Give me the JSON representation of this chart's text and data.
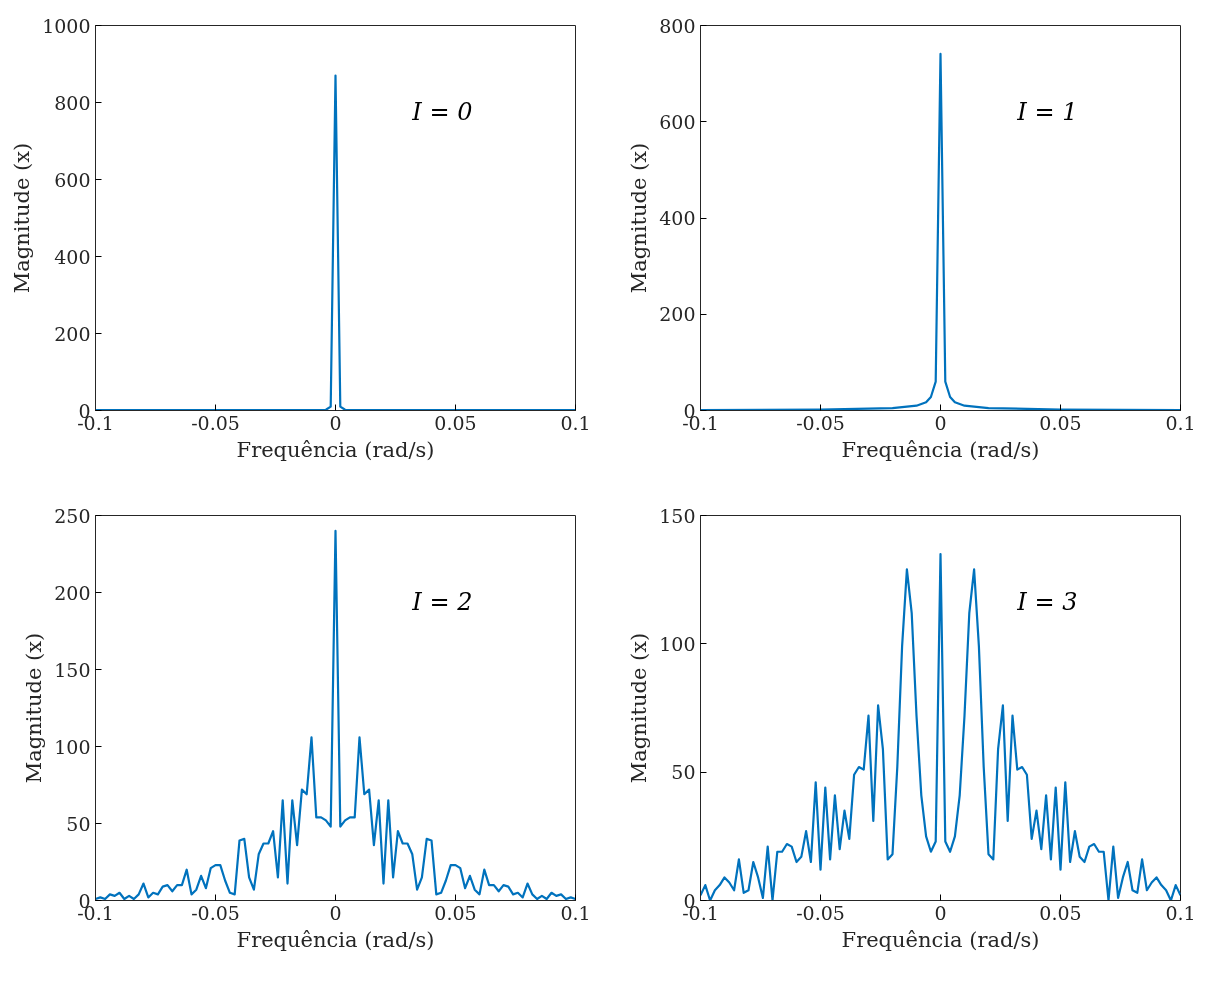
{
  "chart_data": [
    {
      "type": "line",
      "xlabel": "Frequência (rad/s)",
      "ylabel": "Magnitude (x)",
      "annotations": [
        "I = 0"
      ],
      "xlim": [
        -0.1,
        0.1
      ],
      "xticks": [
        -0.1,
        -0.05,
        0,
        0.05,
        0.1
      ],
      "ylim": [
        0,
        1000
      ],
      "yticks": [
        0,
        200,
        400,
        600,
        800,
        1000
      ],
      "grid": false,
      "series": [
        {
          "color": "#0072bd",
          "x": [
            -0.1,
            -0.05,
            -0.02,
            -0.004,
            -0.002,
            0,
            0.002,
            0.004,
            0.02,
            0.05,
            0.1
          ],
          "values": [
            1,
            1,
            1,
            2,
            10,
            870,
            10,
            2,
            1,
            1,
            1
          ]
        }
      ]
    },
    {
      "type": "line",
      "xlabel": "Frequência (rad/s)",
      "ylabel": "Magnitude (x)",
      "annotations": [
        "I = 1"
      ],
      "xlim": [
        -0.1,
        0.1
      ],
      "xticks": [
        -0.1,
        -0.05,
        0,
        0.05,
        0.1
      ],
      "ylim": [
        0,
        800
      ],
      "yticks": [
        0,
        200,
        400,
        600,
        800
      ],
      "grid": false,
      "series": [
        {
          "color": "#0072bd",
          "x": [
            -0.1,
            -0.05,
            -0.02,
            -0.01,
            -0.006,
            -0.004,
            -0.002,
            0,
            0.002,
            0.004,
            0.006,
            0.01,
            0.02,
            0.05,
            0.1
          ],
          "values": [
            1,
            2,
            5,
            10,
            17,
            28,
            60,
            741,
            60,
            28,
            17,
            10,
            5,
            2,
            1
          ]
        }
      ]
    },
    {
      "type": "line",
      "xlabel": "Frequência (rad/s)",
      "ylabel": "Magnitude (x)",
      "annotations": [
        "I = 2"
      ],
      "xlim": [
        -0.1,
        0.1
      ],
      "xticks": [
        -0.1,
        -0.05,
        0,
        0.05,
        0.1
      ],
      "ylim": [
        0,
        250
      ],
      "yticks": [
        0,
        50,
        100,
        150,
        200,
        250
      ],
      "grid": false,
      "series": [
        {
          "color": "#0072bd",
          "x": [
            -0.1,
            -0.098,
            -0.096,
            -0.094,
            -0.092,
            -0.09,
            -0.088,
            -0.086,
            -0.084,
            -0.082,
            -0.08,
            -0.078,
            -0.076,
            -0.074,
            -0.072,
            -0.07,
            -0.068,
            -0.066,
            -0.064,
            -0.062,
            -0.06,
            -0.058,
            -0.056,
            -0.054,
            -0.052,
            -0.05,
            -0.048,
            -0.046,
            -0.044,
            -0.042,
            -0.04,
            -0.038,
            -0.036,
            -0.034,
            -0.032,
            -0.03,
            -0.028,
            -0.026,
            -0.024,
            -0.022,
            -0.02,
            -0.018,
            -0.016,
            -0.014,
            -0.012,
            -0.01,
            -0.008,
            -0.006,
            -0.004,
            -0.002,
            0,
            0.002,
            0.004,
            0.006,
            0.008,
            0.01,
            0.012,
            0.014,
            0.016,
            0.018,
            0.02,
            0.022,
            0.024,
            0.026,
            0.028,
            0.03,
            0.032,
            0.034,
            0.036,
            0.038,
            0.04,
            0.042,
            0.044,
            0.046,
            0.048,
            0.05,
            0.052,
            0.054,
            0.056,
            0.058,
            0.06,
            0.062,
            0.064,
            0.066,
            0.068,
            0.07,
            0.072,
            0.074,
            0.076,
            0.078,
            0.08,
            0.082,
            0.084,
            0.086,
            0.088,
            0.09,
            0.092,
            0.094,
            0.096,
            0.098,
            0.1
          ],
          "values": [
            1,
            2,
            1,
            4,
            3,
            5,
            1,
            3,
            1,
            4,
            11,
            2,
            5,
            4,
            9,
            10,
            6,
            10,
            10,
            20,
            4,
            7,
            16,
            8,
            21,
            23,
            23,
            13,
            5,
            4,
            39,
            40,
            15,
            7,
            30,
            37,
            37,
            45,
            15,
            65,
            11,
            65,
            36,
            72,
            69,
            106,
            54,
            54,
            52,
            48,
            240,
            48,
            52,
            54,
            54,
            106,
            69,
            72,
            36,
            65,
            11,
            65,
            15,
            45,
            37,
            37,
            30,
            7,
            15,
            40,
            39,
            4,
            5,
            13,
            23,
            23,
            21,
            8,
            16,
            7,
            4,
            20,
            10,
            10,
            6,
            10,
            9,
            4,
            5,
            2,
            11,
            4,
            1,
            3,
            1,
            5,
            3,
            4,
            1,
            2,
            1
          ]
        }
      ]
    },
    {
      "type": "line",
      "xlabel": "Frequência (rad/s)",
      "ylabel": "Magnitude (x)",
      "annotations": [
        "I = 3"
      ],
      "xlim": [
        -0.1,
        0.1
      ],
      "xticks": [
        -0.1,
        -0.05,
        0,
        0.05,
        0.1
      ],
      "ylim": [
        0,
        150
      ],
      "yticks": [
        0,
        50,
        100,
        150
      ],
      "grid": false,
      "series": [
        {
          "color": "#0072bd",
          "x": [
            -0.1,
            -0.098,
            -0.096,
            -0.094,
            -0.092,
            -0.09,
            -0.088,
            -0.086,
            -0.084,
            -0.082,
            -0.08,
            -0.078,
            -0.076,
            -0.074,
            -0.072,
            -0.07,
            -0.068,
            -0.066,
            -0.064,
            -0.062,
            -0.06,
            -0.058,
            -0.056,
            -0.054,
            -0.052,
            -0.05,
            -0.048,
            -0.046,
            -0.044,
            -0.042,
            -0.04,
            -0.038,
            -0.036,
            -0.034,
            -0.032,
            -0.03,
            -0.028,
            -0.026,
            -0.024,
            -0.022,
            -0.02,
            -0.018,
            -0.016,
            -0.014,
            -0.012,
            -0.01,
            -0.008,
            -0.006,
            -0.004,
            -0.002,
            0,
            0.002,
            0.004,
            0.006,
            0.008,
            0.01,
            0.012,
            0.014,
            0.016,
            0.018,
            0.02,
            0.022,
            0.024,
            0.026,
            0.028,
            0.03,
            0.032,
            0.034,
            0.036,
            0.038,
            0.04,
            0.042,
            0.044,
            0.046,
            0.048,
            0.05,
            0.052,
            0.054,
            0.056,
            0.058,
            0.06,
            0.062,
            0.064,
            0.066,
            0.068,
            0.07,
            0.072,
            0.074,
            0.076,
            0.078,
            0.08,
            0.082,
            0.084,
            0.086,
            0.088,
            0.09,
            0.092,
            0.094,
            0.096,
            0.098,
            0.1
          ],
          "values": [
            2,
            6,
            0,
            4,
            6,
            9,
            7,
            4,
            16,
            3,
            4,
            15,
            9,
            1,
            21,
            0,
            19,
            19,
            22,
            21,
            15,
            17,
            27,
            15,
            46,
            12,
            44,
            16,
            41,
            20,
            35,
            24,
            49,
            52,
            51,
            72,
            31,
            76,
            59,
            16,
            18,
            52,
            99,
            129,
            112,
            72,
            41,
            25,
            19,
            23,
            135,
            23,
            19,
            25,
            41,
            72,
            112,
            129,
            99,
            52,
            18,
            16,
            59,
            76,
            31,
            72,
            51,
            52,
            49,
            24,
            35,
            20,
            41,
            16,
            44,
            12,
            46,
            15,
            27,
            17,
            15,
            21,
            22,
            19,
            19,
            0,
            21,
            1,
            9,
            15,
            4,
            3,
            16,
            4,
            7,
            9,
            6,
            4,
            0,
            6,
            2
          ]
        }
      ]
    }
  ]
}
